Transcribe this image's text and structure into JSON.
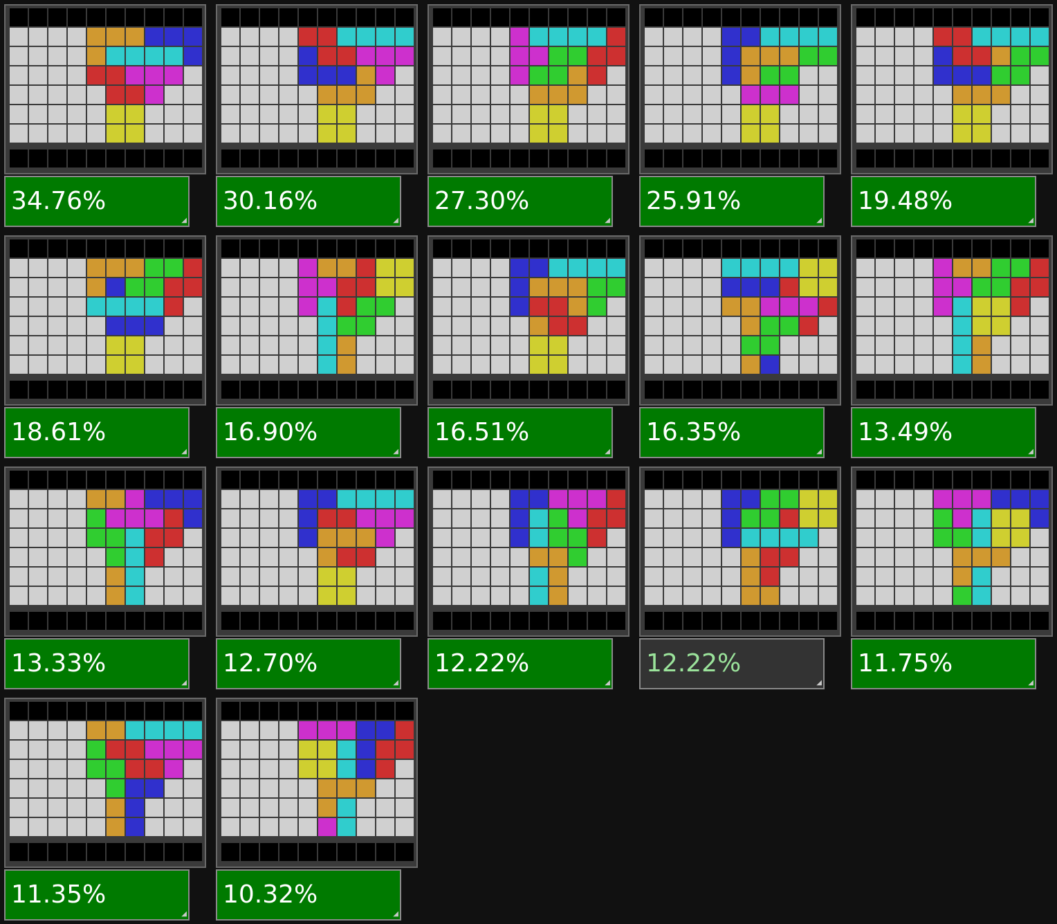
{
  "colors": {
    "O": "#cfcf30",
    "I": "#30cdcd",
    "T": "#cd30cd",
    "L": "#d09930",
    "J": "#3030cd",
    "S": "#30cd30",
    "Z": "#cd3030",
    "empty": "#d0d0d0",
    "score_bg": "#007a00",
    "score_selected_bg": "#333333"
  },
  "icons": {
    "resize_grip": "resize-grip-icon"
  },
  "cards": [
    {
      "score": "34.76%",
      "selected": false,
      "rows": [
        "....LLLJJJ",
        "....LIIIIJ",
        "....ZZTTT.",
        ".....ZZT..",
        ".....OO...",
        ".....OO..."
      ]
    },
    {
      "score": "30.16%",
      "selected": false,
      "rows": [
        "....ZZIIII",
        "....JZZTTT",
        "....JJJLT.",
        ".....LLL..",
        ".....OO...",
        ".....OO..."
      ]
    },
    {
      "score": "27.30%",
      "selected": false,
      "rows": [
        "....TIIIIZ",
        "....TTSSZZ",
        "....TSSLZ.",
        ".....LLL..",
        ".....OO...",
        ".....OO..."
      ]
    },
    {
      "score": "25.91%",
      "selected": false,
      "rows": [
        "....JJIIII",
        "....JLLLSS",
        "....JLSS..",
        ".....TTT..",
        ".....OO...",
        ".....OO..."
      ]
    },
    {
      "score": "19.48%",
      "selected": false,
      "rows": [
        "....ZZIIII",
        "....JZZLSS",
        "....JJJSS.",
        ".....LLL..",
        ".....OO...",
        ".....OO..."
      ]
    },
    {
      "score": "18.61%",
      "selected": false,
      "rows": [
        "....LLLSSZ",
        "....LJSSZZ",
        "....IIIIZ.",
        ".....JJJ..",
        ".....OO...",
        ".....OO..."
      ]
    },
    {
      "score": "16.90%",
      "selected": false,
      "rows": [
        "....TLLZOO",
        "....TTZZOO",
        "....TIZSS.",
        ".....ISS..",
        ".....IL...",
        ".....IL..."
      ]
    },
    {
      "score": "16.51%",
      "selected": false,
      "rows": [
        "....JJIIII",
        "....JLLLSS",
        "....JZZLS.",
        ".....LZZ..",
        ".....OO...",
        ".....OO..."
      ]
    },
    {
      "score": "16.35%",
      "selected": false,
      "rows": [
        "....IIIIOO",
        "....JJJZOO",
        "....LLTTTZ",
        ".....LSSZ.",
        ".....SS...",
        ".....LJ..."
      ]
    },
    {
      "score": "13.49%",
      "selected": false,
      "rows": [
        "....TLLSSZ",
        "....TTSSZZ",
        "....TIOOZ.",
        ".....IOO..",
        ".....IL...",
        ".....IL..."
      ]
    },
    {
      "score": "13.33%",
      "selected": false,
      "rows": [
        "....LLTJJJ",
        "....STTTZJ",
        "....SSIZZ.",
        ".....SIZ..",
        ".....LI...",
        ".....LI..."
      ]
    },
    {
      "score": "12.70%",
      "selected": false,
      "rows": [
        "....JJIIII",
        "....JZZTTT",
        "....JLLLT.",
        ".....LZZ..",
        ".....OO...",
        ".....OO..."
      ]
    },
    {
      "score": "12.22%",
      "selected": false,
      "rows": [
        "....JJTTTZ",
        "....JISTZZ",
        "....JISSZ.",
        ".....LLS..",
        ".....IL...",
        ".....IL..."
      ]
    },
    {
      "score": "12.22%",
      "selected": true,
      "rows": [
        "....JJSSOO",
        "....JSSZOO",
        "....JIIII.",
        ".....LZZ..",
        ".....LZ...",
        ".....LL..."
      ]
    },
    {
      "score": "11.75%",
      "selected": false,
      "rows": [
        "....TTTJJJ",
        "....STIOOJ",
        "....SSIOO.",
        ".....LLL..",
        ".....LI...",
        ".....SI..."
      ]
    },
    {
      "score": "11.35%",
      "selected": false,
      "rows": [
        "....LLIIII",
        "....SZZTTT",
        "....SSZZT.",
        ".....SJJ..",
        ".....LJ...",
        ".....LJ..."
      ]
    },
    {
      "score": "10.32%",
      "selected": false,
      "rows": [
        "....TTTJJZ",
        "....OOIJZZ",
        "....OOIJZ.",
        ".....LLL..",
        ".....LI...",
        ".....TI..."
      ]
    }
  ]
}
